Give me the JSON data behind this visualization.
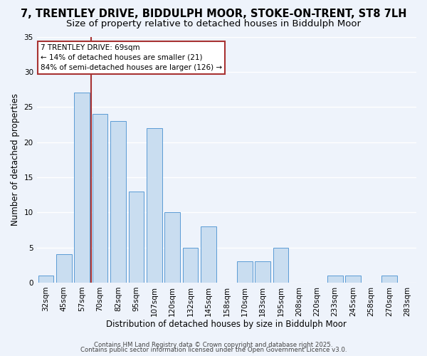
{
  "title": "7, TRENTLEY DRIVE, BIDDULPH MOOR, STOKE-ON-TRENT, ST8 7LH",
  "subtitle": "Size of property relative to detached houses in Biddulph Moor",
  "xlabel": "Distribution of detached houses by size in Biddulph Moor",
  "ylabel": "Number of detached properties",
  "bin_labels": [
    "32sqm",
    "45sqm",
    "57sqm",
    "70sqm",
    "82sqm",
    "95sqm",
    "107sqm",
    "120sqm",
    "132sqm",
    "145sqm",
    "158sqm",
    "170sqm",
    "183sqm",
    "195sqm",
    "208sqm",
    "220sqm",
    "233sqm",
    "245sqm",
    "258sqm",
    "270sqm",
    "283sqm"
  ],
  "bar_values": [
    1,
    4,
    27,
    24,
    23,
    13,
    22,
    10,
    5,
    8,
    0,
    3,
    3,
    5,
    0,
    0,
    1,
    1,
    0,
    1,
    0
  ],
  "bar_color": "#c9ddf0",
  "bar_edge_color": "#5b9bd5",
  "ylim": [
    0,
    35
  ],
  "yticks": [
    0,
    5,
    10,
    15,
    20,
    25,
    30,
    35
  ],
  "vline_index": 2.5,
  "vline_color": "#a83232",
  "annotation_title": "7 TRENTLEY DRIVE: 69sqm",
  "annotation_line1": "← 14% of detached houses are smaller (21)",
  "annotation_line2": "84% of semi-detached houses are larger (126) →",
  "annotation_box_color": "#ffffff",
  "annotation_box_edge": "#a83232",
  "background_color": "#eef3fb",
  "grid_color": "#ffffff",
  "footer1": "Contains HM Land Registry data © Crown copyright and database right 2025.",
  "footer2": "Contains public sector information licensed under the Open Government Licence v3.0.",
  "title_fontsize": 10.5,
  "subtitle_fontsize": 9.5,
  "xlabel_fontsize": 8.5,
  "ylabel_fontsize": 8.5,
  "tick_fontsize": 7.5,
  "footer_fontsize": 6.2
}
